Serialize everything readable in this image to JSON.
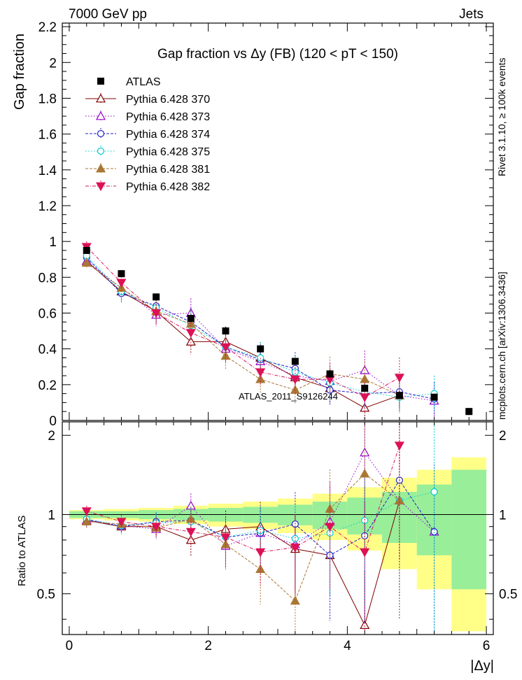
{
  "header": {
    "left": "7000 GeV pp",
    "right": "Jets"
  },
  "side_texts": {
    "rivet": "Rivet 3.1.10, ≥ 100k events",
    "mcplots": "mcplots.cern.ch [arXiv:1306.3436]"
  },
  "chart_data": {
    "type": "scatter",
    "title": "Gap fraction vs Δy (FB) (120 < pT < 150)",
    "watermark": "ATLAS_2011_S9126244",
    "xlabel": "|Δy|",
    "ylabel_top": "Gap fraction",
    "ylabel_bottom": "Ratio to ATLAS",
    "xlim": [
      -0.1,
      6.1
    ],
    "ylim_top": [
      0,
      2.22
    ],
    "ylim_bottom": [
      0.35,
      2.25
    ],
    "xticks": [
      0,
      2,
      4,
      6
    ],
    "yticks_top": [
      0,
      0.2,
      0.4,
      0.6,
      0.8,
      1,
      1.2,
      1.4,
      1.6,
      1.8,
      2,
      2.2
    ],
    "yticks_bottom": [
      0.5,
      1,
      2
    ],
    "x": [
      0.25,
      0.75,
      1.25,
      1.75,
      2.25,
      2.75,
      3.25,
      3.75,
      4.25,
      4.75,
      5.25,
      5.75
    ],
    "data": {
      "name": "ATLAS",
      "values": [
        0.95,
        0.82,
        0.69,
        0.57,
        0.5,
        0.4,
        0.33,
        0.26,
        0.18,
        0.14,
        0.13,
        0.05
      ]
    },
    "bands": {
      "inner": [
        0.03,
        0.03,
        0.04,
        0.05,
        0.06,
        0.07,
        0.09,
        0.12,
        0.16,
        0.22,
        0.3,
        0.48
      ],
      "outer": [
        0.04,
        0.05,
        0.06,
        0.08,
        0.1,
        0.12,
        0.15,
        0.2,
        0.27,
        0.38,
        0.48,
        0.65
      ]
    },
    "series": [
      {
        "name": "Pythia 6.428 370",
        "color": "#7f0000",
        "dash": "",
        "marker": "tri-open",
        "y": [
          0.89,
          0.72,
          0.61,
          0.44,
          0.44,
          0.35,
          0.24,
          0.18,
          0.07,
          0.14,
          null,
          null
        ],
        "ratio": [
          0.95,
          0.9,
          0.9,
          0.8,
          0.88,
          0.9,
          0.74,
          0.7,
          0.38,
          1.13,
          null,
          null
        ]
      },
      {
        "name": "Pythia 6.428 373",
        "color": "#9900cc",
        "dash": "1.5,2.5",
        "marker": "tri-open",
        "y": [
          0.89,
          0.74,
          0.59,
          0.6,
          0.4,
          0.33,
          0.25,
          0.22,
          0.28,
          0.14,
          0.11,
          null
        ],
        "ratio": [
          0.95,
          0.91,
          0.88,
          1.08,
          0.76,
          0.85,
          0.77,
          0.94,
          1.72,
          1.13,
          0.86,
          null
        ]
      },
      {
        "name": "Pythia 6.428 374",
        "color": "#2222cc",
        "dash": "4,2",
        "marker": "circ-open",
        "y": [
          0.91,
          0.71,
          0.64,
          0.55,
          0.41,
          0.34,
          0.29,
          0.17,
          0.15,
          0.16,
          0.12,
          null
        ],
        "ratio": [
          0.96,
          0.9,
          0.94,
          0.95,
          0.82,
          0.85,
          0.92,
          0.7,
          0.83,
          1.35,
          0.86,
          null
        ]
      },
      {
        "name": "Pythia 6.428 375",
        "color": "#00cccc",
        "dash": "1.5,2.5",
        "marker": "circ-open",
        "y": [
          0.92,
          0.72,
          0.63,
          0.53,
          0.41,
          0.35,
          0.27,
          0.21,
          0.16,
          0.13,
          0.15,
          null
        ],
        "ratio": [
          0.96,
          0.91,
          0.93,
          0.94,
          0.82,
          0.87,
          0.81,
          0.85,
          0.95,
          1.13,
          1.22,
          null
        ]
      },
      {
        "name": "Pythia 6.428 381",
        "color": "#aa7733",
        "dash": "4,2",
        "marker": "tri-full",
        "y": [
          0.88,
          0.74,
          0.61,
          0.54,
          0.36,
          0.23,
          0.17,
          0.26,
          0.23,
          0.14,
          null,
          null
        ],
        "ratio": [
          0.94,
          0.92,
          0.89,
          0.96,
          0.77,
          0.62,
          0.47,
          1.05,
          1.43,
          1.13,
          null,
          null
        ]
      },
      {
        "name": "Pythia 6.428 382",
        "color": "#dd1155",
        "dash": "5,2,1,2",
        "marker": "tri-down-full",
        "y": [
          0.97,
          0.77,
          0.6,
          0.49,
          0.41,
          0.27,
          0.23,
          0.23,
          0.13,
          0.24,
          null,
          null
        ],
        "ratio": [
          1.03,
          0.94,
          0.9,
          0.86,
          0.82,
          0.72,
          0.75,
          0.9,
          0.72,
          1.83,
          null,
          null
        ]
      }
    ]
  }
}
